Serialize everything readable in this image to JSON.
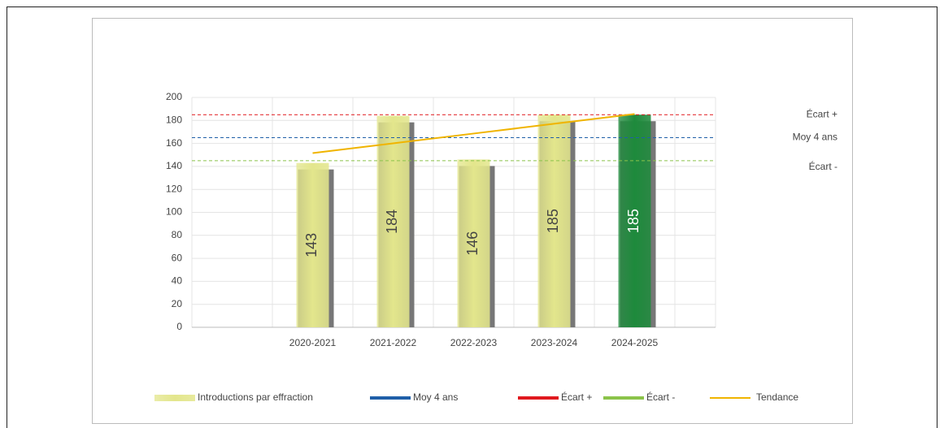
{
  "chart_data": {
    "type": "bar",
    "categories": [
      null,
      "2020-2021",
      "2021-2022",
      "2022-2023",
      "2023-2024",
      "2024-2025"
    ],
    "series": [
      {
        "name": "Introductions par effraction",
        "type": "bar",
        "values": [
          null,
          143,
          184,
          146,
          185,
          185
        ],
        "colors": [
          null,
          "#e3e68c",
          "#e3e68c",
          "#e3e68c",
          "#e3e68c",
          "#1e8a3c"
        ]
      },
      {
        "name": "Moy 4 ans",
        "type": "ref",
        "color": "#1f5fa8",
        "value": 165
      },
      {
        "name": "Écart +",
        "type": "ref",
        "color": "#e0191e",
        "value": 185
      },
      {
        "name": "Écart -",
        "type": "ref",
        "color": "#8bc34a",
        "value": 145
      },
      {
        "name": "Tendance",
        "type": "line",
        "color": "#f0b400",
        "values": [
          null,
          151.6,
          160.1,
          168.6,
          177.1,
          185.6
        ]
      }
    ],
    "ylim": [
      0,
      200
    ],
    "yticks": [
      0,
      20,
      40,
      60,
      80,
      100,
      120,
      140,
      160,
      180,
      200
    ],
    "grid": true
  }
}
